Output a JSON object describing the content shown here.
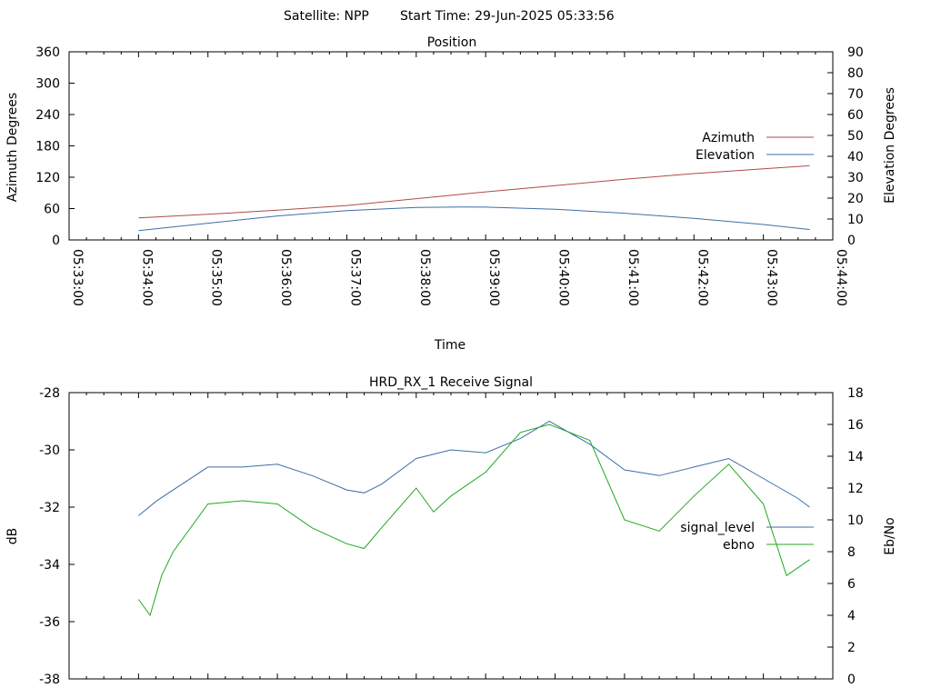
{
  "header": {
    "satellite": "Satellite: NPP",
    "start_time": "Start Time: 29-Jun-2025 05:33:56"
  },
  "position_chart": {
    "title": "Position",
    "type": "line",
    "xlabel": "Time",
    "ylabel_left": "Azimuth Degrees",
    "ylabel_right": "Elevation Degrees",
    "x_ticks": [
      "05:33:00",
      "05:34:00",
      "05:35:00",
      "05:36:00",
      "05:37:00",
      "05:38:00",
      "05:39:00",
      "05:40:00",
      "05:41:00",
      "05:42:00",
      "05:43:00",
      "05:44:00"
    ],
    "y_left_ticks": [
      "0",
      "60",
      "120",
      "180",
      "240",
      "300",
      "360"
    ],
    "y_right_ticks": [
      "0",
      "10",
      "20",
      "30",
      "40",
      "50",
      "60",
      "70",
      "80",
      "90"
    ],
    "y_left_range": [
      0,
      360
    ],
    "y_right_range": [
      0,
      90
    ],
    "legend_position": "right",
    "series": [
      {
        "name": "Azimuth",
        "axis": "left",
        "color": "#b04a4a",
        "x": [
          "05:34:00",
          "05:35:00",
          "05:36:00",
          "05:37:00",
          "05:38:00",
          "05:39:00",
          "05:40:00",
          "05:41:00",
          "05:42:00",
          "05:43:00",
          "05:43:40"
        ],
        "values": [
          42,
          49,
          57,
          66,
          79,
          92,
          104,
          116,
          127,
          136,
          142
        ]
      },
      {
        "name": "Elevation",
        "axis": "right",
        "color": "#3d6ea8",
        "x": [
          "05:34:00",
          "05:35:00",
          "05:36:00",
          "05:37:00",
          "05:38:00",
          "05:38:40",
          "05:39:00",
          "05:40:00",
          "05:41:00",
          "05:42:00",
          "05:43:00",
          "05:43:40"
        ],
        "values": [
          4.5,
          8,
          11.5,
          14,
          15.5,
          15.8,
          15.7,
          14.7,
          12.8,
          10.3,
          7.4,
          5.0
        ]
      }
    ]
  },
  "signal_chart": {
    "title": "HRD_RX_1 Receive Signal",
    "type": "line",
    "ylabel_left": "dB",
    "ylabel_right": "Eb/No",
    "y_left_ticks": [
      "-28",
      "-30",
      "-32",
      "-34",
      "-36",
      "-38"
    ],
    "y_right_ticks": [
      "0",
      "2",
      "4",
      "6",
      "8",
      "10",
      "12",
      "14",
      "16",
      "18"
    ],
    "y_left_range": [
      -38,
      -28
    ],
    "y_right_range": [
      0,
      18
    ],
    "legend_position": "right",
    "series": [
      {
        "name": "signal_level",
        "axis": "left",
        "color": "#3d6ea8",
        "x": [
          "05:34:00",
          "05:34:15",
          "05:34:30",
          "05:35:00",
          "05:35:30",
          "05:36:00",
          "05:36:30",
          "05:37:00",
          "05:37:15",
          "05:37:30",
          "05:38:00",
          "05:38:30",
          "05:39:00",
          "05:39:30",
          "05:39:55",
          "05:40:30",
          "05:41:00",
          "05:41:30",
          "05:42:00",
          "05:42:30",
          "05:43:00",
          "05:43:30",
          "05:43:40"
        ],
        "values": [
          -32.3,
          -31.8,
          -31.4,
          -30.6,
          -30.6,
          -30.5,
          -30.9,
          -31.4,
          -31.5,
          -31.2,
          -30.3,
          -30.0,
          -30.1,
          -29.6,
          -29.0,
          -29.8,
          -30.7,
          -30.9,
          -30.6,
          -30.3,
          -31.0,
          -31.7,
          -32.0
        ]
      },
      {
        "name": "ebno",
        "axis": "right",
        "color": "#21a821",
        "x": [
          "05:34:00",
          "05:34:10",
          "05:34:20",
          "05:34:30",
          "05:35:00",
          "05:35:30",
          "05:36:00",
          "05:36:30",
          "05:37:00",
          "05:37:15",
          "05:37:30",
          "05:38:00",
          "05:38:15",
          "05:38:30",
          "05:39:00",
          "05:39:30",
          "05:39:55",
          "05:40:30",
          "05:41:00",
          "05:41:30",
          "05:42:00",
          "05:42:30",
          "05:43:00",
          "05:43:20",
          "05:43:40"
        ],
        "values": [
          5,
          4,
          6.5,
          8,
          11,
          11.2,
          11,
          9.5,
          8.5,
          8.2,
          9.5,
          12,
          10.5,
          11.5,
          13,
          15.5,
          16,
          15,
          10,
          9.3,
          11.5,
          13.5,
          11,
          6.5,
          7.5
        ]
      }
    ]
  }
}
